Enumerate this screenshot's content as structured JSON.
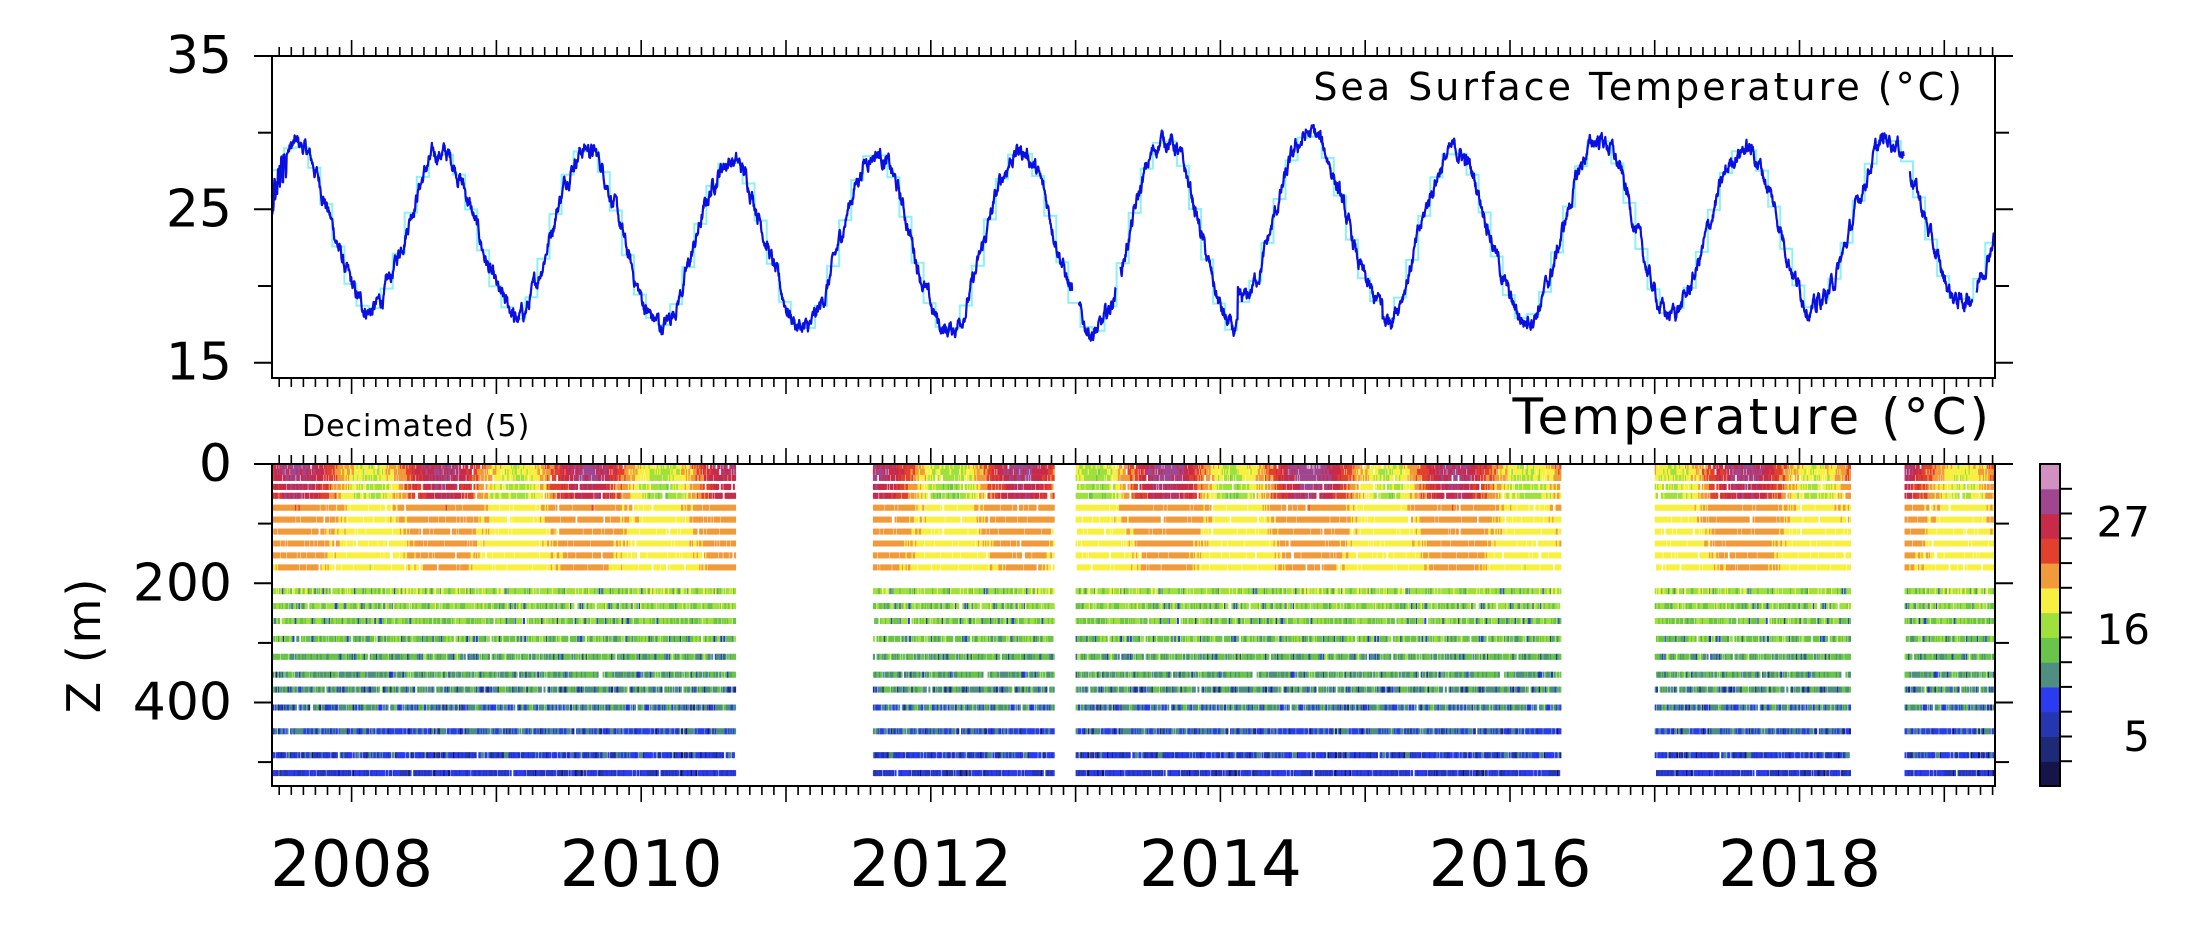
{
  "colors": {
    "sst_line": "#0a10e0",
    "sst_monthly": "#8ef0f4",
    "axis": "#000000"
  },
  "chart_data": [
    {
      "type": "line",
      "title": "Sea Surface Temperature (°C)",
      "x_range": [
        2007.45,
        2019.35
      ],
      "ylim": [
        14,
        35
      ],
      "y_ticks": [
        "15",
        "25",
        "35"
      ],
      "season_phase": 0.62,
      "summer_peaks": [
        29.2,
        28.7,
        29.0,
        28.2,
        28.7,
        28.8,
        29.6,
        29.9,
        28.8,
        29.6,
        29.0,
        29.6
      ],
      "winter_troughs": [
        18.5,
        18.4,
        17.7,
        17.3,
        17.1,
        17.1,
        16.9,
        18.8,
        17.7,
        18.0,
        18.4,
        19.0
      ],
      "series": [
        {
          "name": "",
          "kind": "daily"
        },
        {
          "name": "",
          "kind": "monthly"
        }
      ]
    },
    {
      "type": "heatmap",
      "title": "Temperature (°C)",
      "annotation": "Decimated (5)",
      "ylabel": "Z (m)",
      "y_ticks": [
        "0",
        "200",
        "400"
      ],
      "ylim": [
        0,
        540
      ],
      "x_ticks": [
        "2008",
        "2010",
        "2012",
        "2014",
        "2016",
        "2018"
      ],
      "x_range": [
        2007.45,
        2019.35
      ],
      "depth_levels": [
        5,
        15,
        25,
        40,
        55,
        75,
        95,
        115,
        135,
        155,
        175,
        215,
        240,
        265,
        295,
        325,
        355,
        380,
        410,
        450,
        490,
        520
      ],
      "data_gaps": [
        [
          2010.65,
          2011.6
        ],
        [
          2012.85,
          2013.0
        ],
        [
          2016.35,
          2017.0
        ],
        [
          2018.35,
          2018.72
        ]
      ],
      "colorbar": {
        "ticks": [
          "5",
          "16",
          "27"
        ],
        "tick_values": [
          5,
          16,
          27
        ],
        "range": [
          0,
          33
        ],
        "colors": [
          "#15154a",
          "#1e2a78",
          "#2436b0",
          "#2b3cf0",
          "#4f8f82",
          "#6ac44a",
          "#9fe03c",
          "#f8f040",
          "#f09a3a",
          "#e0402c",
          "#c82a4a",
          "#a04690",
          "#d090c0"
        ]
      }
    }
  ]
}
